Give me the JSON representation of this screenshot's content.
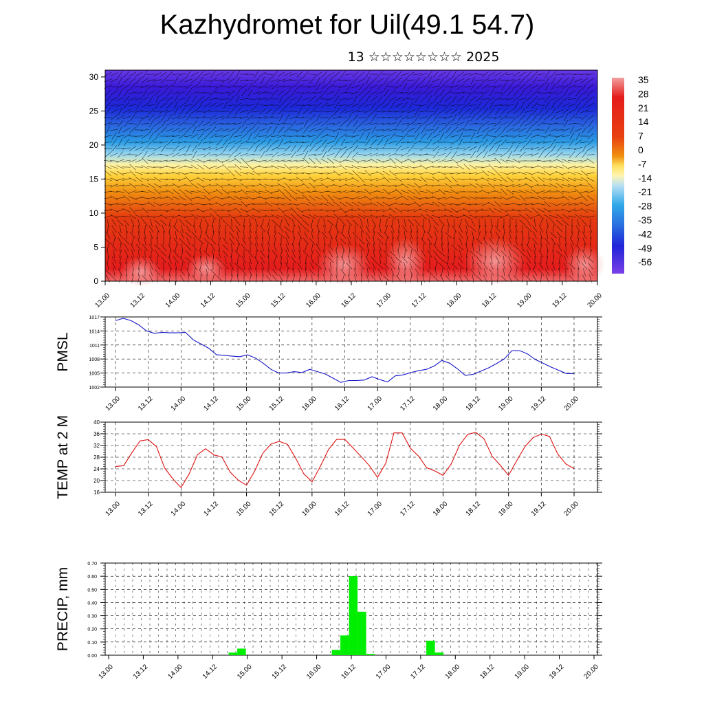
{
  "title": "Kazhydromet for Uil(49.1 54.7)",
  "subtitle": "13 ☆☆☆☆☆☆☆☆ 2025",
  "chart_data": [
    {
      "type": "heatmap",
      "name": "Temperature cross-section with wind barbs",
      "y_ticks": [
        "0",
        "5",
        "10",
        "15",
        "20",
        "25",
        "30"
      ],
      "ylim": [
        0,
        31
      ],
      "x_ticks": [
        "13.00",
        "13.12",
        "14.00",
        "14.12",
        "15.00",
        "15.12",
        "16.00",
        "16.12",
        "17.00",
        "17.12",
        "18.00",
        "18.12",
        "19.00",
        "19.12",
        "20.00"
      ],
      "colorbar_labels": [
        "35",
        "28",
        "21",
        "14",
        "7",
        "0",
        "-7",
        "-14",
        "-21",
        "-28",
        "-35",
        "-42",
        "-49",
        "-56"
      ]
    },
    {
      "type": "line",
      "ylabel": "PMSL",
      "ylim": [
        1002,
        1017
      ],
      "y_ticks": [
        "1017",
        "1014",
        "1011",
        "1008",
        "1005",
        "1002"
      ],
      "x_ticks": [
        "13.00",
        "13.12",
        "14.00",
        "14.12",
        "15.00",
        "15.12",
        "16.00",
        "16.12",
        "17.00",
        "17.12",
        "18.00",
        "18.12",
        "19.00",
        "19.12",
        "20.00"
      ],
      "color": "#1414c8",
      "values": [
        1016.2,
        1016.7,
        1016.2,
        1015.3,
        1014,
        1013.5,
        1013.7,
        1013.6,
        1013.6,
        1013.7,
        1012.1,
        1011.2,
        1010.3,
        1008.9,
        1008.8,
        1008.6,
        1008.5,
        1008.9,
        1008.2,
        1007.1,
        1005.8,
        1005,
        1005,
        1005.3,
        1005.1,
        1005.8,
        1005.3,
        1004.8,
        1003.9,
        1003,
        1003.4,
        1003.4,
        1003.5,
        1004.2,
        1003.6,
        1003.1,
        1004.4,
        1004.6,
        1005.1,
        1005.5,
        1005.8,
        1006.5,
        1007.7,
        1007.1,
        1005.9,
        1004.5,
        1004.7,
        1005.4,
        1006.1,
        1007,
        1008,
        1009.8,
        1009.8,
        1009.1,
        1007.9,
        1007.1,
        1006.3,
        1005.6,
        1004.9,
        1004.9
      ]
    },
    {
      "type": "line",
      "ylabel": "TEMP at 2 M",
      "ylim": [
        16,
        40
      ],
      "y_ticks": [
        "40",
        "36",
        "32",
        "28",
        "24",
        "20",
        "16"
      ],
      "x_ticks": [
        "13.00",
        "13.12",
        "14.00",
        "14.12",
        "15.00",
        "15.12",
        "16.00",
        "16.12",
        "17.00",
        "17.12",
        "18.00",
        "18.12",
        "19.00",
        "19.12",
        "20.00"
      ],
      "color": "#dd1010",
      "values": [
        24.8,
        25.1,
        29.5,
        33.6,
        34,
        31.6,
        24.3,
        20.6,
        17.6,
        22.3,
        28.8,
        30.9,
        28.8,
        28.1,
        22.9,
        20.1,
        18.4,
        23.3,
        29.4,
        32.5,
        33.4,
        32.4,
        27.7,
        22.3,
        19.6,
        24.8,
        30.6,
        34.1,
        34.1,
        31.2,
        28.2,
        25.1,
        21.1,
        25.9,
        36.3,
        36.3,
        31.1,
        28.4,
        24.4,
        23.3,
        21.8,
        25.7,
        32.1,
        35.8,
        36.5,
        34.3,
        28.3,
        25.2,
        21.8,
        26.8,
        31.6,
        34.7,
        35.9,
        35.1,
        29.1,
        25.7,
        24.1
      ]
    },
    {
      "type": "bar",
      "ylabel": "PRECIP, mm",
      "ylim": [
        0,
        0.7
      ],
      "y_ticks": [
        "0.70",
        "0.60",
        "0.50",
        "0.40",
        "0.30",
        "0.20",
        "0.10",
        "0.00"
      ],
      "x_ticks": [
        "13.00",
        "13.12",
        "14.00",
        "14.12",
        "15.00",
        "15.12",
        "16.00",
        "16.12",
        "17.00",
        "17.12",
        "18.00",
        "18.12",
        "19.00",
        "19.12",
        "20.00"
      ],
      "color": "#00ee00",
      "bars": [
        {
          "x": 41.0,
          "value": 0.02
        },
        {
          "x": 44.0,
          "value": 0.05
        },
        {
          "x": 77.0,
          "value": 0.04
        },
        {
          "x": 80.0,
          "value": 0.15
        },
        {
          "x": 83.0,
          "value": 0.6
        },
        {
          "x": 86.0,
          "value": 0.33
        },
        {
          "x": 89.0,
          "value": 0.01
        },
        {
          "x": 110.0,
          "value": 0.11
        },
        {
          "x": 113.0,
          "value": 0.02
        }
      ]
    }
  ]
}
